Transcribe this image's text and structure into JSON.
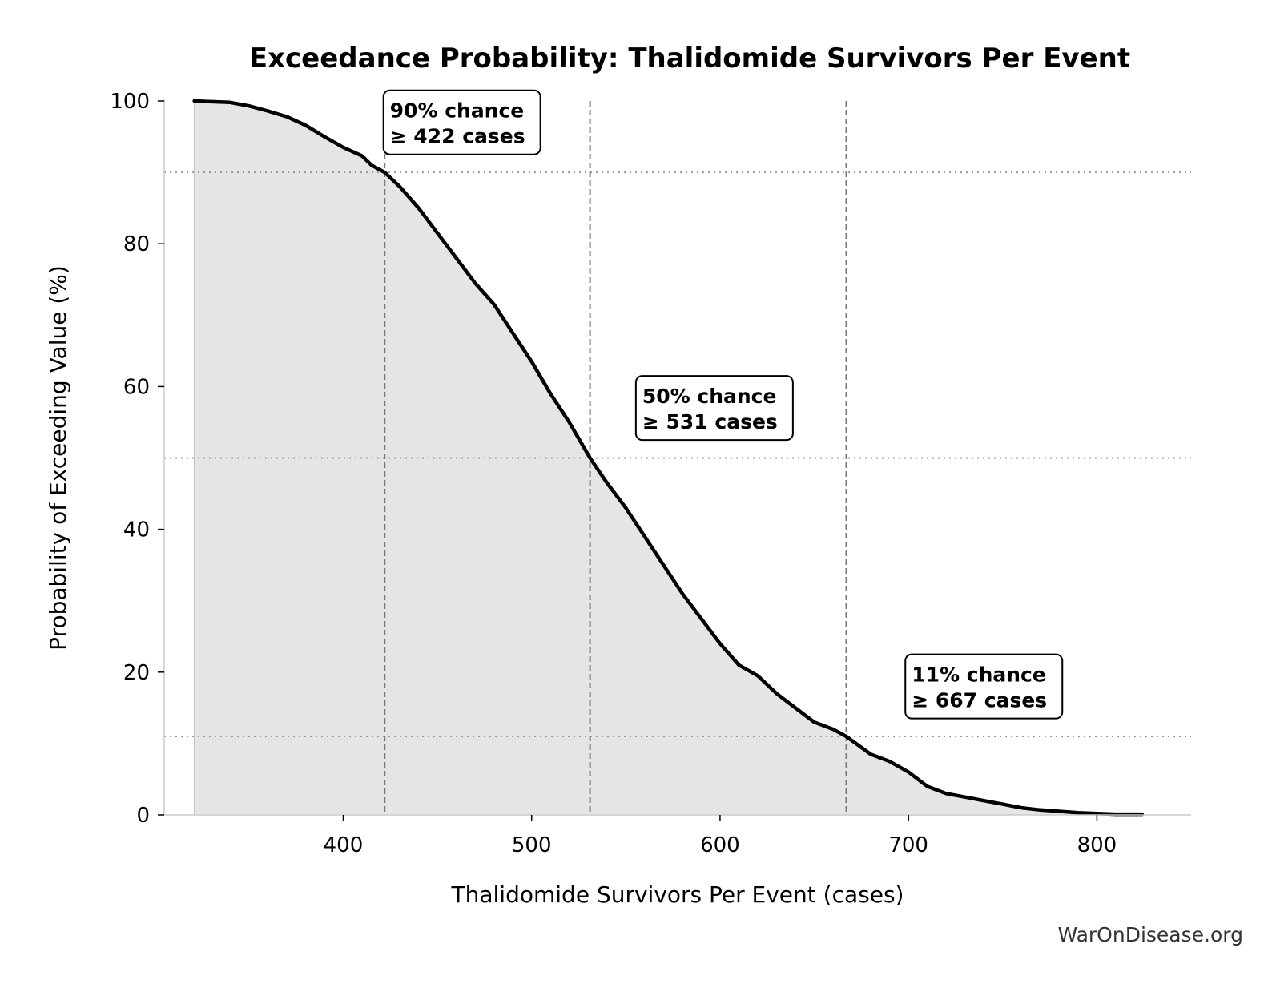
{
  "chart_data": {
    "type": "area",
    "title": "Exceedance Probability: Thalidomide Survivors Per Event",
    "xlabel": "Thalidomide Survivors Per Event (cases)",
    "ylabel": "Probability of Exceeding Value (%)",
    "xlim": [
      305,
      850
    ],
    "ylim": [
      0,
      100
    ],
    "x_ticks": [
      400,
      500,
      600,
      700,
      800
    ],
    "y_ticks": [
      0,
      20,
      40,
      60,
      80,
      100
    ],
    "grid": false,
    "legend": "none",
    "series": [
      {
        "x": [
          321,
          340,
          350,
          360,
          370,
          380,
          390,
          400,
          410,
          415,
          422,
          430,
          440,
          450,
          460,
          470,
          480,
          490,
          500,
          510,
          520,
          531,
          540,
          550,
          560,
          570,
          580,
          590,
          600,
          610,
          620,
          630,
          640,
          650,
          660,
          667,
          680,
          690,
          700,
          710,
          720,
          730,
          740,
          750,
          760,
          770,
          780,
          790,
          800,
          810,
          824
        ],
        "y": [
          100,
          99.8,
          99.3,
          98.6,
          97.8,
          96.6,
          95.0,
          93.5,
          92.3,
          91.0,
          90.0,
          88.0,
          85.0,
          81.5,
          78.0,
          74.5,
          71.5,
          67.5,
          63.5,
          59.0,
          55.0,
          50.0,
          46.5,
          43.0,
          39.0,
          35.0,
          31.0,
          27.5,
          24.0,
          21.0,
          19.5,
          17.0,
          15.0,
          13.0,
          12.0,
          11.0,
          8.5,
          7.5,
          6.0,
          4.0,
          3.0,
          2.5,
          2.0,
          1.5,
          1.0,
          0.7,
          0.5,
          0.3,
          0.2,
          0.1,
          0.1
        ]
      }
    ],
    "reference_lines": [
      {
        "x": 422,
        "y": 90
      },
      {
        "x": 531,
        "y": 50
      },
      {
        "x": 667,
        "y": 11
      }
    ],
    "annotations": [
      {
        "line1": "90% chance",
        "line2": "≥ 422 cases",
        "x": 463,
        "y": 97
      },
      {
        "line1": "50% chance",
        "line2": "≥ 531 cases",
        "x": 597,
        "y": 57
      },
      {
        "line1": "11% chance",
        "line2": "≥ 667 cases",
        "x": 740,
        "y": 18
      }
    ],
    "colors": {
      "line": "#000000",
      "fill": "#e5e5e5",
      "ref_line": "#777777",
      "hline": "#999999"
    }
  },
  "credit": "WarOnDisease.org"
}
